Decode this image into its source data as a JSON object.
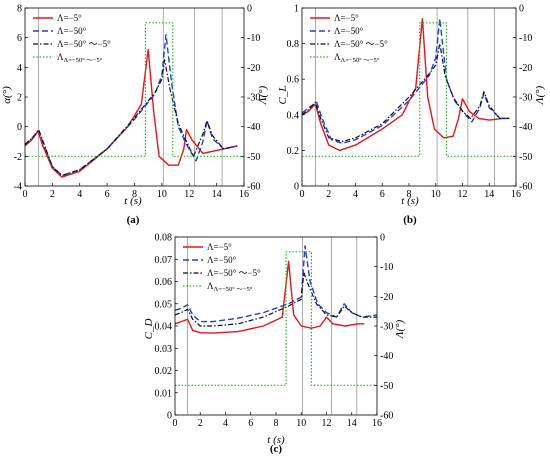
{
  "legend": {
    "a": "Λ=−5°",
    "b": "Λ=−50°",
    "c": "Λ=−50° ～−5°",
    "d_main": "Λ",
    "d_sub": "Λ=−50° ～−5°"
  },
  "colors": {
    "a": "#e8141b",
    "b": "#1f3fd6",
    "c": "#111111",
    "d": "#22b422"
  },
  "chart_data": [
    {
      "type": "line",
      "caption": "(a)",
      "xlabel": "t (s)",
      "ylabel_left": "α(°)",
      "ylabel_right": "Λ(°)",
      "xlim": [
        0,
        16
      ],
      "ylim_left": [
        -4,
        8
      ],
      "ylim_right_top_to_bottom": [
        0,
        60
      ],
      "x_ticks": [
        "0",
        "2",
        "4",
        "6",
        "8",
        "10",
        "12",
        "14",
        "16"
      ],
      "y_ticks_left": [
        "-4",
        "-2",
        "0",
        "2",
        "4",
        "6",
        "8"
      ],
      "y_ticks_right": [
        "0",
        "-10",
        "-20",
        "-30",
        "-40",
        "-50",
        "-60"
      ],
      "vlines": [
        1.0,
        10.1,
        12.4,
        14.4
      ],
      "series": [
        {
          "key": "a",
          "points": [
            [
              0,
              -1.3
            ],
            [
              0.5,
              -0.9
            ],
            [
              0.95,
              -0.3
            ],
            [
              1.3,
              -1.3
            ],
            [
              2.0,
              -2.8
            ],
            [
              2.7,
              -3.4
            ],
            [
              4,
              -3.0
            ],
            [
              6,
              -1.5
            ],
            [
              7.5,
              0
            ],
            [
              8.5,
              1.5
            ],
            [
              9.0,
              5.2
            ],
            [
              9.4,
              1.0
            ],
            [
              9.8,
              -2.0
            ],
            [
              10.5,
              -2.6
            ],
            [
              11.2,
              -2.6
            ],
            [
              11.6,
              -1.5
            ],
            [
              11.8,
              -0.2
            ],
            [
              12.2,
              -0.9
            ],
            [
              13,
              -1.8
            ],
            [
              14,
              -1.6
            ],
            [
              15,
              -1.4
            ],
            [
              15.5,
              -1.3
            ]
          ]
        },
        {
          "key": "b",
          "points": [
            [
              0,
              -1.2
            ],
            [
              0.5,
              -0.8
            ],
            [
              1.0,
              -0.3
            ],
            [
              1.4,
              -1.3
            ],
            [
              2.0,
              -2.7
            ],
            [
              2.7,
              -3.3
            ],
            [
              4,
              -2.9
            ],
            [
              6,
              -1.5
            ],
            [
              8,
              0.5
            ],
            [
              9.5,
              2.2
            ],
            [
              10.0,
              3.5
            ],
            [
              10.3,
              6.2
            ],
            [
              10.7,
              3.0
            ],
            [
              11.2,
              0
            ],
            [
              11.8,
              -1.2
            ],
            [
              12.5,
              -2.3
            ],
            [
              13.0,
              -1.0
            ],
            [
              13.3,
              0.4
            ],
            [
              13.7,
              -0.8
            ],
            [
              14.5,
              -1.5
            ],
            [
              15.5,
              -1.3
            ]
          ]
        },
        {
          "key": "c",
          "points": [
            [
              0,
              -1.2
            ],
            [
              0.5,
              -0.8
            ],
            [
              1.0,
              -0.2
            ],
            [
              1.4,
              -1.2
            ],
            [
              2.0,
              -2.7
            ],
            [
              2.7,
              -3.3
            ],
            [
              4,
              -2.9
            ],
            [
              6,
              -1.5
            ],
            [
              8,
              0.6
            ],
            [
              9.5,
              2.3
            ],
            [
              10.0,
              3.2
            ],
            [
              10.2,
              4.5
            ],
            [
              10.6,
              2.5
            ],
            [
              11.2,
              0.2
            ],
            [
              11.8,
              -1.0
            ],
            [
              12.3,
              -2.0
            ],
            [
              13.0,
              -0.5
            ],
            [
              13.3,
              0.4
            ],
            [
              13.7,
              -0.6
            ],
            [
              14.5,
              -1.5
            ],
            [
              15.5,
              -1.3
            ]
          ]
        },
        {
          "key": "d",
          "axis": "right",
          "points": [
            [
              0,
              -50
            ],
            [
              8.8,
              -50
            ],
            [
              8.8,
              -5
            ],
            [
              10.8,
              -5
            ],
            [
              10.8,
              -50
            ],
            [
              16,
              -50
            ]
          ]
        }
      ]
    },
    {
      "type": "line",
      "caption": "(b)",
      "xlabel": "t (s)",
      "ylabel_left": "C_L",
      "ylabel_right": "Λ(°)",
      "xlim": [
        0,
        16
      ],
      "ylim_left": [
        0,
        1
      ],
      "ylim_right_top_to_bottom": [
        0,
        60
      ],
      "x_ticks": [
        "0",
        "2",
        "4",
        "6",
        "8",
        "10",
        "12",
        "14",
        "16"
      ],
      "y_ticks_left": [
        "0",
        "0.2",
        "0.4",
        "0.6",
        "0.8",
        "1"
      ],
      "y_ticks_right": [
        "0",
        "-10",
        "-20",
        "-30",
        "-40",
        "-50",
        "-60"
      ],
      "vlines": [
        1.0,
        10.1,
        12.4,
        14.4
      ],
      "series": [
        {
          "key": "a",
          "points": [
            [
              0,
              0.4
            ],
            [
              0.5,
              0.42
            ],
            [
              1.0,
              0.46
            ],
            [
              1.4,
              0.35
            ],
            [
              2.0,
              0.23
            ],
            [
              2.8,
              0.2
            ],
            [
              4,
              0.23
            ],
            [
              6,
              0.32
            ],
            [
              7.5,
              0.4
            ],
            [
              8.5,
              0.55
            ],
            [
              9.0,
              0.94
            ],
            [
              9.4,
              0.5
            ],
            [
              9.9,
              0.32
            ],
            [
              10.6,
              0.27
            ],
            [
              11.3,
              0.28
            ],
            [
              11.7,
              0.38
            ],
            [
              12.0,
              0.49
            ],
            [
              12.5,
              0.42
            ],
            [
              13.2,
              0.38
            ],
            [
              14,
              0.37
            ],
            [
              15,
              0.38
            ],
            [
              15.5,
              0.38
            ]
          ]
        },
        {
          "key": "b",
          "points": [
            [
              0,
              0.41
            ],
            [
              0.5,
              0.44
            ],
            [
              1.1,
              0.47
            ],
            [
              1.5,
              0.38
            ],
            [
              2.2,
              0.26
            ],
            [
              3,
              0.24
            ],
            [
              4,
              0.26
            ],
            [
              6,
              0.34
            ],
            [
              8,
              0.48
            ],
            [
              9.5,
              0.62
            ],
            [
              10.0,
              0.72
            ],
            [
              10.3,
              0.94
            ],
            [
              10.8,
              0.6
            ],
            [
              11.4,
              0.48
            ],
            [
              12.0,
              0.42
            ],
            [
              12.7,
              0.36
            ],
            [
              13.3,
              0.44
            ],
            [
              13.6,
              0.52
            ],
            [
              14.0,
              0.44
            ],
            [
              14.8,
              0.38
            ],
            [
              15.5,
              0.38
            ]
          ]
        },
        {
          "key": "c",
          "points": [
            [
              0,
              0.4
            ],
            [
              0.5,
              0.43
            ],
            [
              1.0,
              0.47
            ],
            [
              1.4,
              0.38
            ],
            [
              2.0,
              0.27
            ],
            [
              3,
              0.25
            ],
            [
              4,
              0.27
            ],
            [
              6,
              0.35
            ],
            [
              8,
              0.5
            ],
            [
              9.5,
              0.63
            ],
            [
              10.0,
              0.68
            ],
            [
              10.3,
              0.8
            ],
            [
              10.7,
              0.62
            ],
            [
              11.3,
              0.5
            ],
            [
              12.0,
              0.42
            ],
            [
              12.6,
              0.38
            ],
            [
              13.3,
              0.45
            ],
            [
              13.6,
              0.53
            ],
            [
              14.0,
              0.45
            ],
            [
              14.8,
              0.38
            ],
            [
              15.5,
              0.38
            ]
          ]
        },
        {
          "key": "d",
          "axis": "right",
          "points": [
            [
              0,
              -50
            ],
            [
              8.8,
              -50
            ],
            [
              8.8,
              -5
            ],
            [
              10.8,
              -5
            ],
            [
              10.8,
              -50
            ],
            [
              16,
              -50
            ]
          ]
        }
      ]
    },
    {
      "type": "line",
      "caption": "(c)",
      "xlabel": "t (s)",
      "ylabel_left": "C_D",
      "ylabel_right": "Λ(°)",
      "xlim": [
        0,
        16
      ],
      "ylim_left": [
        0,
        0.08
      ],
      "ylim_right_top_to_bottom": [
        0,
        60
      ],
      "x_ticks": [
        "0",
        "2",
        "4",
        "6",
        "8",
        "10",
        "12",
        "14",
        "16"
      ],
      "y_ticks_left": [
        "0",
        "0.01",
        "0.02",
        "0.03",
        "0.04",
        "0.05",
        "0.06",
        "0.07",
        "0.08"
      ],
      "y_ticks_right": [
        "0",
        "-10",
        "-20",
        "-30",
        "-40",
        "-50",
        "-60"
      ],
      "vlines": [
        1.0,
        10.1,
        12.4,
        14.4
      ],
      "series": [
        {
          "key": "a",
          "points": [
            [
              0,
              0.041
            ],
            [
              0.5,
              0.042
            ],
            [
              1.0,
              0.043
            ],
            [
              1.4,
              0.038
            ],
            [
              2.0,
              0.037
            ],
            [
              3,
              0.0368
            ],
            [
              5,
              0.0375
            ],
            [
              7,
              0.04
            ],
            [
              8.5,
              0.044
            ],
            [
              9.0,
              0.069
            ],
            [
              9.4,
              0.045
            ],
            [
              10.0,
              0.04
            ],
            [
              10.8,
              0.039
            ],
            [
              11.5,
              0.04
            ],
            [
              12.0,
              0.044
            ],
            [
              12.5,
              0.041
            ],
            [
              13.5,
              0.04
            ],
            [
              14.5,
              0.041
            ],
            [
              15,
              0.041
            ]
          ]
        },
        {
          "key": "b",
          "points": [
            [
              0,
              0.047
            ],
            [
              0.5,
              0.048
            ],
            [
              1.0,
              0.0495
            ],
            [
              1.4,
              0.045
            ],
            [
              2.0,
              0.042
            ],
            [
              3,
              0.042
            ],
            [
              5,
              0.0435
            ],
            [
              7,
              0.046
            ],
            [
              9,
              0.05
            ],
            [
              10.0,
              0.053
            ],
            [
              10.3,
              0.076
            ],
            [
              10.7,
              0.06
            ],
            [
              11.3,
              0.05
            ],
            [
              12,
              0.046
            ],
            [
              12.8,
              0.044
            ],
            [
              13.4,
              0.05
            ],
            [
              14.0,
              0.046
            ],
            [
              14.8,
              0.044
            ],
            [
              16,
              0.045
            ]
          ]
        },
        {
          "key": "c",
          "points": [
            [
              0,
              0.045
            ],
            [
              0.5,
              0.046
            ],
            [
              1.0,
              0.0475
            ],
            [
              1.4,
              0.043
            ],
            [
              2.0,
              0.04
            ],
            [
              3,
              0.04
            ],
            [
              5,
              0.041
            ],
            [
              7,
              0.044
            ],
            [
              9,
              0.049
            ],
            [
              10.0,
              0.052
            ],
            [
              10.2,
              0.064
            ],
            [
              10.6,
              0.058
            ],
            [
              11.2,
              0.05
            ],
            [
              12,
              0.045
            ],
            [
              12.8,
              0.044
            ],
            [
              13.4,
              0.049
            ],
            [
              14.0,
              0.046
            ],
            [
              14.8,
              0.044
            ],
            [
              16,
              0.044
            ]
          ]
        },
        {
          "key": "d",
          "axis": "right",
          "points": [
            [
              0,
              -50
            ],
            [
              8.8,
              -50
            ],
            [
              8.8,
              -5
            ],
            [
              10.8,
              -5
            ],
            [
              10.8,
              -50
            ],
            [
              16,
              -50
            ]
          ]
        }
      ]
    }
  ]
}
